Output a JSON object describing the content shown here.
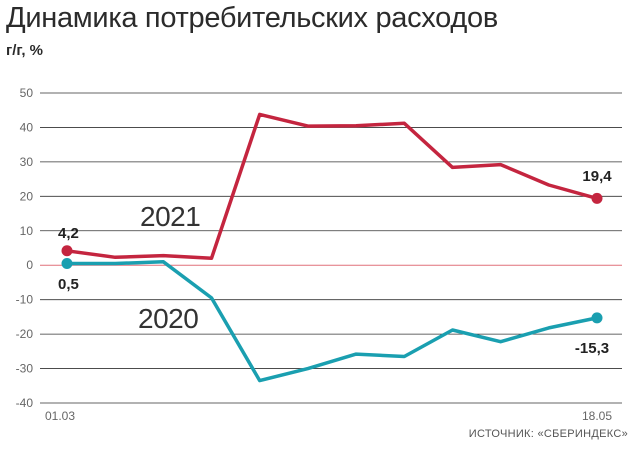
{
  "header": {
    "title": "Динамика потребительских расходов",
    "unit": "г/г, %"
  },
  "source": "ИСТОЧНИК: «СБЕРИНДЕКС»",
  "colors": {
    "series_2021": "#c4253f",
    "series_2020": "#1a9fb0",
    "zero_line": "#e0707a",
    "grid": "#333333"
  },
  "chart_data": {
    "type": "line",
    "title": "Динамика потребительских расходов",
    "ylabel": "г/г, %",
    "xlabel": "",
    "ylim": [
      -40,
      50
    ],
    "yticks": [
      "50",
      "40",
      "30",
      "20",
      "10",
      "0",
      "-10",
      "-20",
      "-30",
      "-40"
    ],
    "x_tick_labels": [
      "01.03",
      "18.05"
    ],
    "grid": "horizontal",
    "x": [
      "01.03",
      "08.03",
      "15.03",
      "22.03",
      "29.03",
      "05.04",
      "12.04",
      "19.04",
      "26.04",
      "03.05",
      "10.05",
      "18.05"
    ],
    "series": [
      {
        "name": "2021",
        "values": [
          4.2,
          2.3,
          2.8,
          2.0,
          43.8,
          40.4,
          40.5,
          41.2,
          28.4,
          29.2,
          23.3,
          19.4
        ],
        "start_label": "4,2",
        "end_label": "19,4"
      },
      {
        "name": "2020",
        "values": [
          0.5,
          0.5,
          1.0,
          -9.5,
          -33.5,
          -30.0,
          -25.8,
          -26.5,
          -18.8,
          -22.2,
          -18.2,
          -15.3
        ],
        "start_label": "0,5",
        "end_label": "-15,3"
      }
    ]
  }
}
